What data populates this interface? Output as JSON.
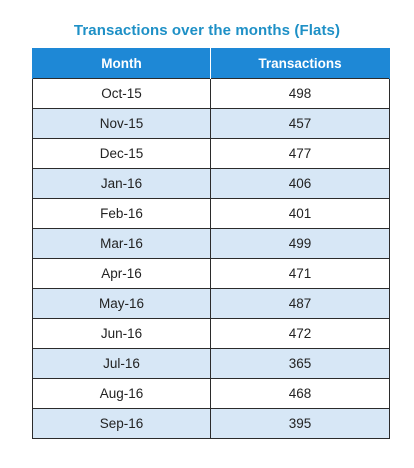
{
  "title": "Transactions over the months (Flats)",
  "table": {
    "headers": {
      "month": "Month",
      "transactions": "Transactions"
    },
    "rows": [
      {
        "month": "Oct-15",
        "transactions": "498"
      },
      {
        "month": "Nov-15",
        "transactions": "457"
      },
      {
        "month": "Dec-15",
        "transactions": "477"
      },
      {
        "month": "Jan-16",
        "transactions": "406"
      },
      {
        "month": "Feb-16",
        "transactions": "401"
      },
      {
        "month": "Mar-16",
        "transactions": "499"
      },
      {
        "month": "Apr-16",
        "transactions": "471"
      },
      {
        "month": "May-16",
        "transactions": "487"
      },
      {
        "month": "Jun-16",
        "transactions": "472"
      },
      {
        "month": "Jul-16",
        "transactions": "365"
      },
      {
        "month": "Aug-16",
        "transactions": "468"
      },
      {
        "month": "Sep-16",
        "transactions": "395"
      }
    ]
  },
  "colors": {
    "title": "#1e90c6",
    "header_background": "#1e88d6",
    "header_text": "#ffffff",
    "stripe": "#d7e7f6",
    "border": "#2b2b2b"
  }
}
